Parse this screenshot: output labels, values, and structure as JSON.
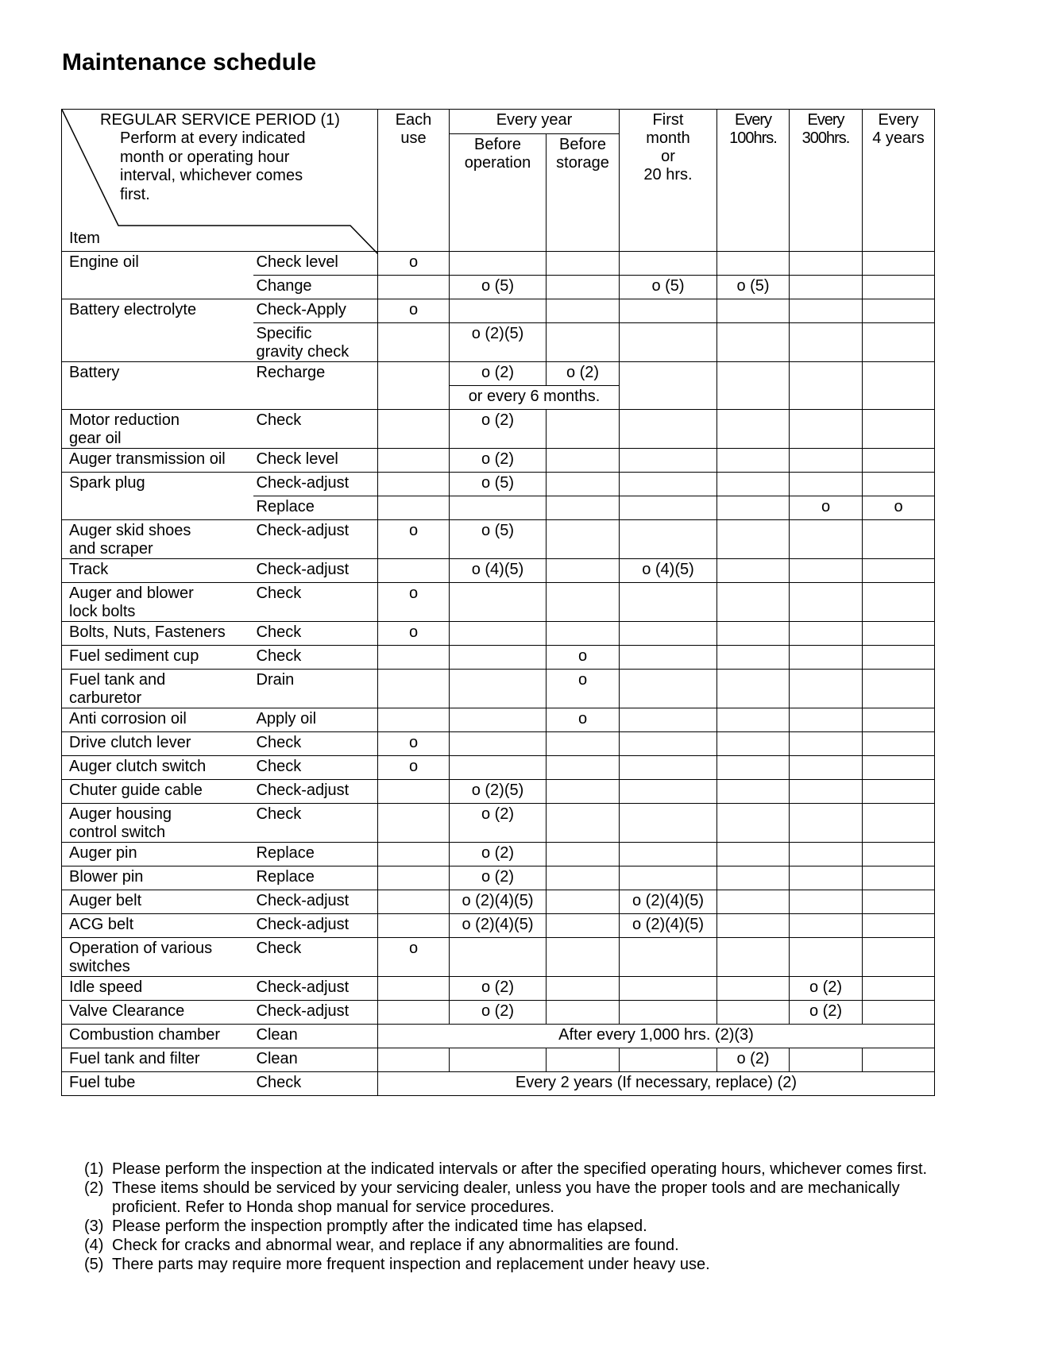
{
  "title": "Maintenance schedule",
  "header": {
    "period_title": "REGULAR SERVICE PERIOD (1)",
    "period_desc": "Perform at every indicated\nmonth or operating hour\ninterval, whichever comes\nfirst.",
    "item_label": "Item",
    "each_use": "Each\nuse",
    "every_year": "Every year",
    "before_operation": "Before\noperation",
    "before_storage": "Before\nstorage",
    "first_month": "First\nmonth\nor\n20 hrs.",
    "every_100": "Every\n100hrs.",
    "every_300": "Every\n300hrs.",
    "every_4y": "Every\n4 years"
  },
  "rows": [
    {
      "item": "Engine oil",
      "item_rs": 2,
      "action": "Check level",
      "cells": [
        "o",
        "",
        "",
        "",
        "",
        "",
        ""
      ]
    },
    {
      "item": null,
      "action": "Change",
      "cells": [
        "",
        "o (5)",
        "",
        "o (5)",
        "o (5)",
        "",
        ""
      ]
    },
    {
      "item": "Battery electrolyte",
      "item_rs": 2,
      "action": "Check-Apply",
      "cells": [
        "o",
        "",
        "",
        "",
        "",
        "",
        ""
      ]
    },
    {
      "item": null,
      "action": "Specific\ngravity check",
      "cells": [
        "",
        "o (2)(5)",
        "",
        "",
        "",
        "",
        ""
      ]
    },
    {
      "item": "Battery",
      "item_rs": 2,
      "action": "Recharge",
      "action_rs": 2,
      "cells": [
        {
          "t": "",
          "rs": 2
        },
        "o (2)",
        "o (2)",
        {
          "t": "",
          "rs": 2
        },
        {
          "t": "",
          "rs": 2
        },
        {
          "t": "",
          "rs": 2
        },
        {
          "t": "",
          "rs": 2
        }
      ]
    },
    {
      "item": null,
      "action": null,
      "cells": [
        {
          "t": "or every 6 months.",
          "cs": 2
        }
      ]
    },
    {
      "item": "Motor reduction\ngear oil",
      "action": "Check",
      "cells": [
        "",
        "o (2)",
        "",
        "",
        "",
        "",
        ""
      ]
    },
    {
      "item": "Auger transmission oil",
      "action": "Check level",
      "cells": [
        "",
        "o (2)",
        "",
        "",
        "",
        "",
        ""
      ]
    },
    {
      "item": "Spark plug",
      "item_rs": 2,
      "action": "Check-adjust",
      "cells": [
        "",
        "o (5)",
        "",
        "",
        "",
        "",
        ""
      ]
    },
    {
      "item": null,
      "action": "Replace",
      "cells": [
        "",
        "",
        "",
        "",
        "",
        "o",
        "o"
      ]
    },
    {
      "item": "Auger skid shoes\nand scraper",
      "action": "Check-adjust",
      "cells": [
        "o",
        "o (5)",
        "",
        "",
        "",
        "",
        ""
      ]
    },
    {
      "item": "Track",
      "action": "Check-adjust",
      "cells": [
        "",
        "o (4)(5)",
        "",
        "o (4)(5)",
        "",
        "",
        ""
      ]
    },
    {
      "item": "Auger and blower\nlock bolts",
      "action": "Check",
      "cells": [
        "o",
        "",
        "",
        "",
        "",
        "",
        ""
      ]
    },
    {
      "item": "Bolts, Nuts, Fasteners",
      "action": "Check",
      "cells": [
        "o",
        "",
        "",
        "",
        "",
        "",
        ""
      ]
    },
    {
      "item": "Fuel sediment cup",
      "action": "Check",
      "cells": [
        "",
        "",
        "o",
        "",
        "",
        "",
        ""
      ]
    },
    {
      "item": "Fuel tank and\ncarburetor",
      "action": "Drain",
      "cells": [
        "",
        "",
        "o",
        "",
        "",
        "",
        ""
      ]
    },
    {
      "item": "Anti corrosion oil",
      "action": "Apply oil",
      "cells": [
        "",
        "",
        "o",
        "",
        "",
        "",
        ""
      ]
    },
    {
      "item": "Drive clutch lever",
      "action": "Check",
      "cells": [
        "o",
        "",
        "",
        "",
        "",
        "",
        ""
      ]
    },
    {
      "item": "Auger clutch switch",
      "action": "Check",
      "cells": [
        "o",
        "",
        "",
        "",
        "",
        "",
        ""
      ]
    },
    {
      "item": "Chuter guide cable",
      "action": "Check-adjust",
      "cells": [
        "",
        "o (2)(5)",
        "",
        "",
        "",
        "",
        ""
      ]
    },
    {
      "item": "Auger housing\ncontrol switch",
      "action": "Check",
      "cells": [
        "",
        "o (2)",
        "",
        "",
        "",
        "",
        ""
      ]
    },
    {
      "item": "Auger pin",
      "action": "Replace",
      "cells": [
        "",
        "o (2)",
        "",
        "",
        "",
        "",
        ""
      ]
    },
    {
      "item": "Blower pin",
      "action": "Replace",
      "cells": [
        "",
        "o (2)",
        "",
        "",
        "",
        "",
        ""
      ]
    },
    {
      "item": "Auger belt",
      "action": "Check-adjust",
      "cells": [
        "",
        "o (2)(4)(5)",
        "",
        "o (2)(4)(5)",
        "",
        "",
        ""
      ]
    },
    {
      "item": "ACG belt",
      "action": "Check-adjust",
      "cells": [
        "",
        "o (2)(4)(5)",
        "",
        "o (2)(4)(5)",
        "",
        "",
        ""
      ]
    },
    {
      "item": "Operation  of  various\nswitches",
      "action": "Check",
      "cells": [
        "o",
        "",
        "",
        "",
        "",
        "",
        ""
      ]
    },
    {
      "item": "Idle speed",
      "action": "Check-adjust",
      "cells": [
        "",
        "o (2)",
        "",
        "",
        "",
        "o (2)",
        ""
      ]
    },
    {
      "item": "Valve Clearance",
      "action": "Check-adjust",
      "cells": [
        "",
        "o (2)",
        "",
        "",
        "",
        "o (2)",
        ""
      ]
    },
    {
      "item": "Combustion chamber",
      "action": "Clean",
      "cells": [
        {
          "t": "After every 1,000 hrs. (2)(3)",
          "cs": 7
        }
      ]
    },
    {
      "item": "Fuel tank and filter",
      "action": "Clean",
      "cells": [
        "",
        "",
        "",
        "",
        "o (2)",
        "",
        ""
      ]
    },
    {
      "item": "Fuel tube",
      "action": "Check",
      "cells": [
        {
          "t": "Every 2 years (If necessary, replace) (2)",
          "cs": 7
        }
      ]
    }
  ],
  "notes": [
    {
      "num": "(1)",
      "text": "Please perform the inspection at the indicated intervals or after the specified operating hours, whichever comes first."
    },
    {
      "num": "(2)",
      "text": "These items should be serviced by your servicing dealer, unless you have the proper tools and are mechanically proficient. Refer to Honda shop manual for service procedures."
    },
    {
      "num": "(3)",
      "text": "Please perform the inspection promptly after the indicated time has elapsed."
    },
    {
      "num": "(4)",
      "text": "Check for cracks and abnormal wear, and replace if any abnormalities are found."
    },
    {
      "num": "(5)",
      "text": "There parts may require more frequent inspection and replacement under heavy use."
    }
  ]
}
